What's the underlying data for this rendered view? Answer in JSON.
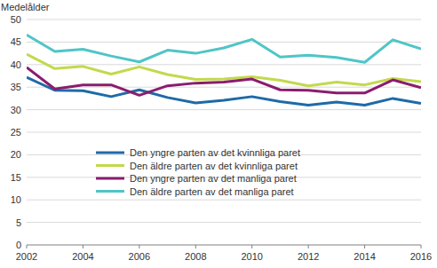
{
  "chart_data": {
    "type": "line",
    "y_label": "Medelålder",
    "x": [
      2002,
      2003,
      2004,
      2005,
      2006,
      2007,
      2008,
      2009,
      2010,
      2011,
      2012,
      2013,
      2014,
      2015,
      2016
    ],
    "series": [
      {
        "name": "Den yngre parten av det kvinnliga paret",
        "color": "#1f6aa8",
        "values": [
          37.2,
          34.3,
          34.2,
          32.9,
          34.4,
          32.7,
          31.5,
          32.1,
          32.9,
          31.8,
          31.0,
          31.7,
          31.0,
          32.5,
          31.4
        ]
      },
      {
        "name": "Den äldre parten av det kvinnliga paret",
        "color": "#c3d94c",
        "values": [
          42.3,
          39.1,
          39.6,
          37.9,
          39.5,
          37.8,
          36.7,
          36.8,
          37.3,
          36.5,
          35.3,
          36.1,
          35.5,
          36.9,
          36.2
        ]
      },
      {
        "name": "Den yngre parten av det manliga paret",
        "color": "#8b1c6f",
        "values": [
          39.4,
          34.6,
          35.5,
          35.5,
          33.2,
          35.3,
          35.9,
          36.1,
          36.8,
          34.4,
          34.3,
          33.7,
          33.7,
          36.6,
          34.9
        ]
      },
      {
        "name": "Den äldre parten av det manliga paret",
        "color": "#4fc5c7",
        "values": [
          46.6,
          42.9,
          43.4,
          41.9,
          40.6,
          43.2,
          42.5,
          43.7,
          45.6,
          41.7,
          42.1,
          41.6,
          40.5,
          45.5,
          43.5
        ]
      }
    ],
    "xlim": [
      2002,
      2016
    ],
    "xticks": [
      2002,
      2004,
      2006,
      2008,
      2010,
      2012,
      2014,
      2016
    ],
    "ylim": [
      0,
      50
    ],
    "yticks": [
      0,
      5,
      10,
      15,
      20,
      25,
      30,
      35,
      40,
      45,
      50
    ],
    "grid": true,
    "legend": "center"
  }
}
